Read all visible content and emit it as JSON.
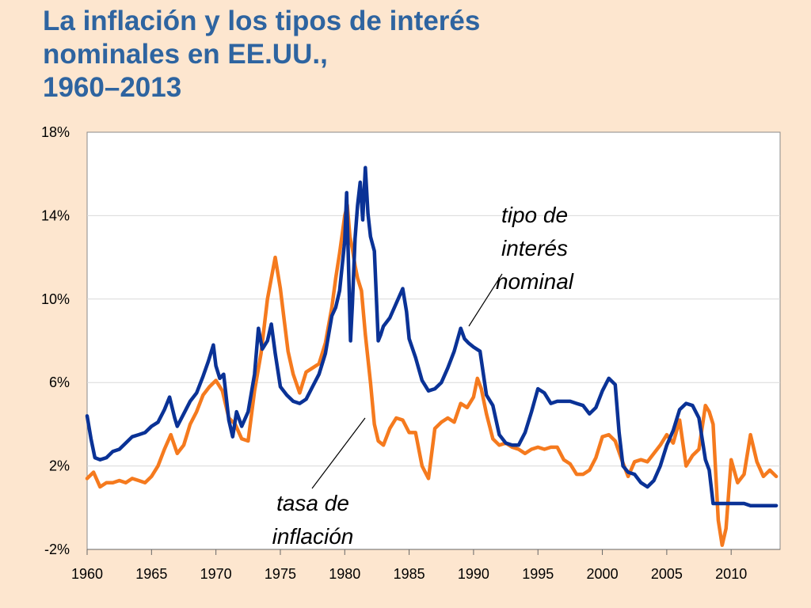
{
  "title": {
    "line1": "La inflación y los tipos de interés",
    "line2": "nominales en EE.UU.,",
    "line3": "1960–2013"
  },
  "colors": {
    "nominal": "#0a3296",
    "inflation": "#f57a1e",
    "plot_bg": "#ffffff",
    "grid": "#d9d9d9"
  },
  "chart_data": {
    "type": "line",
    "title": "La inflación y los tipos de interés nominales en EE.UU., 1960–2013",
    "xlabel": "",
    "ylabel": "",
    "xlim": [
      1960,
      2013.8
    ],
    "ylim": [
      -2,
      18
    ],
    "x_ticks": [
      1960,
      1965,
      1970,
      1975,
      1980,
      1985,
      1990,
      1995,
      2000,
      2005,
      2010
    ],
    "x_tick_labels": [
      "1960",
      "1965",
      "1970",
      "1975",
      "1980",
      "1985",
      "1990",
      "1995",
      "2000",
      "2005",
      "2010"
    ],
    "y_ticks": [
      -2,
      2,
      6,
      10,
      14,
      18
    ],
    "y_tick_labels": [
      "-2%",
      "2%",
      "6%",
      "10%",
      "14%",
      "18%"
    ],
    "grid": true,
    "annotations": [
      {
        "id": "nominal",
        "lines": [
          "tipo de",
          "interés",
          "nominal"
        ],
        "x": 1989.7,
        "y": 8.9
      },
      {
        "id": "inflation",
        "lines": [
          "tasa de",
          "inflación"
        ],
        "x": 1981.8,
        "y": 4.3
      }
    ],
    "series": [
      {
        "name": "tipo de interés nominal",
        "color": "#0a3296",
        "x": [
          1960,
          1960.3,
          1960.6,
          1961,
          1961.5,
          1962,
          1962.5,
          1963,
          1963.5,
          1964,
          1964.5,
          1965,
          1965.5,
          1966,
          1966.4,
          1966.8,
          1967,
          1967.5,
          1968,
          1968.5,
          1969,
          1969.4,
          1969.8,
          1970,
          1970.3,
          1970.6,
          1971,
          1971.3,
          1971.6,
          1972,
          1972.5,
          1973,
          1973.3,
          1973.6,
          1974,
          1974.3,
          1974.6,
          1975,
          1975.5,
          1976,
          1976.5,
          1977,
          1977.5,
          1978,
          1978.5,
          1979,
          1979.3,
          1979.6,
          1980,
          1980.15,
          1980.3,
          1980.45,
          1980.6,
          1980.8,
          1981,
          1981.2,
          1981.4,
          1981.6,
          1981.8,
          1982,
          1982.3,
          1982.6,
          1982.8,
          1983,
          1983.5,
          1984,
          1984.5,
          1984.8,
          1985,
          1985.5,
          1986,
          1986.5,
          1987,
          1987.5,
          1988,
          1988.5,
          1989,
          1989.3,
          1989.6,
          1990,
          1990.5,
          1991,
          1991.5,
          1992,
          1992.5,
          1993,
          1993.5,
          1994,
          1994.5,
          1995,
          1995.5,
          1996,
          1996.5,
          1997,
          1997.5,
          1998,
          1998.5,
          1999,
          1999.5,
          2000,
          2000.5,
          2001,
          2001.3,
          2001.6,
          2002,
          2002.5,
          2003,
          2003.5,
          2004,
          2004.5,
          2005,
          2005.5,
          2006,
          2006.5,
          2007,
          2007.5,
          2008,
          2008.3,
          2008.6,
          2009,
          2009.5,
          2010,
          2010.5,
          2011,
          2011.5,
          2012,
          2012.5,
          2013,
          2013.5
        ],
        "values": [
          4.4,
          3.3,
          2.4,
          2.3,
          2.4,
          2.7,
          2.8,
          3.1,
          3.4,
          3.5,
          3.6,
          3.9,
          4.1,
          4.7,
          5.3,
          4.3,
          3.9,
          4.5,
          5.1,
          5.5,
          6.3,
          7.0,
          7.8,
          6.8,
          6.2,
          6.4,
          4.2,
          3.4,
          4.6,
          3.9,
          4.6,
          6.4,
          8.6,
          7.6,
          8.0,
          8.8,
          7.4,
          5.8,
          5.4,
          5.1,
          5.0,
          5.2,
          5.8,
          6.4,
          7.4,
          9.2,
          9.6,
          10.4,
          12.8,
          15.1,
          11.4,
          8.0,
          9.8,
          12.9,
          14.5,
          15.6,
          13.8,
          16.3,
          14.1,
          13.0,
          12.3,
          8.0,
          8.3,
          8.7,
          9.1,
          9.8,
          10.5,
          9.4,
          8.1,
          7.2,
          6.1,
          5.6,
          5.7,
          6.0,
          6.7,
          7.5,
          8.6,
          8.1,
          7.9,
          7.7,
          7.5,
          5.4,
          4.9,
          3.5,
          3.1,
          3.0,
          3.0,
          3.6,
          4.6,
          5.7,
          5.5,
          5.0,
          5.1,
          5.1,
          5.1,
          5.0,
          4.9,
          4.5,
          4.8,
          5.6,
          6.2,
          5.9,
          3.6,
          2.0,
          1.7,
          1.6,
          1.2,
          1.0,
          1.3,
          2.0,
          3.0,
          3.7,
          4.7,
          5.0,
          4.9,
          4.3,
          2.3,
          1.8,
          0.2,
          0.2,
          0.2,
          0.2,
          0.2,
          0.2,
          0.1,
          0.1,
          0.1,
          0.1,
          0.1
        ]
      },
      {
        "name": "tasa de inflación",
        "color": "#f57a1e",
        "x": [
          1960,
          1960.5,
          1961,
          1961.5,
          1962,
          1962.5,
          1963,
          1963.5,
          1964,
          1964.5,
          1965,
          1965.5,
          1966,
          1966.5,
          1967,
          1967.5,
          1968,
          1968.5,
          1969,
          1969.5,
          1970,
          1970.5,
          1971,
          1971.5,
          1972,
          1972.5,
          1973,
          1973.5,
          1974,
          1974.3,
          1974.6,
          1975,
          1975.3,
          1975.6,
          1976,
          1976.5,
          1977,
          1977.5,
          1978,
          1978.5,
          1979,
          1979.3,
          1979.6,
          1980,
          1980.2,
          1980.4,
          1980.6,
          1980.8,
          1981,
          1981.3,
          1981.6,
          1982,
          1982.3,
          1982.6,
          1983,
          1983.5,
          1984,
          1984.5,
          1985,
          1985.5,
          1986,
          1986.5,
          1987,
          1987.5,
          1988,
          1988.5,
          1989,
          1989.5,
          1990,
          1990.3,
          1990.6,
          1991,
          1991.5,
          1992,
          1992.5,
          1993,
          1993.5,
          1994,
          1994.5,
          1995,
          1995.5,
          1996,
          1996.5,
          1997,
          1997.5,
          1998,
          1998.5,
          1999,
          1999.5,
          2000,
          2000.5,
          2001,
          2001.5,
          2002,
          2002.5,
          2003,
          2003.5,
          2004,
          2004.5,
          2005,
          2005.5,
          2006,
          2006.5,
          2007,
          2007.5,
          2008,
          2008.3,
          2008.6,
          2009,
          2009.3,
          2009.6,
          2010,
          2010.5,
          2011,
          2011.5,
          2012,
          2012.5,
          2013,
          2013.5
        ],
        "values": [
          1.4,
          1.7,
          1.0,
          1.2,
          1.2,
          1.3,
          1.2,
          1.4,
          1.3,
          1.2,
          1.5,
          2.0,
          2.8,
          3.5,
          2.6,
          3.0,
          4.0,
          4.6,
          5.4,
          5.8,
          6.1,
          5.6,
          4.3,
          4.0,
          3.3,
          3.2,
          5.6,
          7.4,
          10.0,
          11.0,
          12.0,
          10.5,
          9.0,
          7.5,
          6.4,
          5.5,
          6.5,
          6.7,
          6.9,
          7.9,
          9.6,
          11.0,
          12.2,
          14.0,
          14.5,
          13.0,
          12.4,
          11.6,
          11.0,
          10.4,
          8.3,
          6.0,
          4.0,
          3.2,
          3.0,
          3.8,
          4.3,
          4.2,
          3.6,
          3.6,
          2.0,
          1.4,
          3.8,
          4.1,
          4.3,
          4.1,
          5.0,
          4.8,
          5.3,
          6.2,
          5.7,
          4.5,
          3.3,
          3.0,
          3.1,
          2.9,
          2.8,
          2.6,
          2.8,
          2.9,
          2.8,
          2.9,
          2.9,
          2.3,
          2.1,
          1.6,
          1.6,
          1.8,
          2.4,
          3.4,
          3.5,
          3.2,
          2.3,
          1.5,
          2.2,
          2.3,
          2.2,
          2.6,
          3.0,
          3.5,
          3.1,
          4.2,
          2.0,
          2.5,
          2.8,
          4.9,
          4.6,
          4.0,
          -0.6,
          -1.8,
          -1.0,
          2.3,
          1.2,
          1.6,
          3.5,
          2.2,
          1.5,
          1.8,
          1.5
        ]
      }
    ]
  }
}
